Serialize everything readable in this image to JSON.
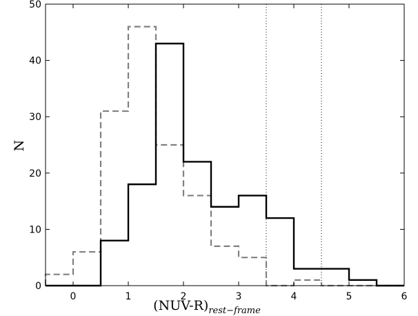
{
  "chart_data": {
    "type": "histogram",
    "bin_edges": [
      -0.5,
      0,
      0.5,
      1,
      1.5,
      2,
      2.5,
      3,
      3.5,
      4,
      4.5,
      5,
      5.5,
      6
    ],
    "series": [
      {
        "style": "solid",
        "color": "#000000",
        "values": [
          0,
          0,
          8,
          18,
          43,
          22,
          14,
          16,
          12,
          3,
          3,
          1,
          0
        ]
      },
      {
        "style": "dashed",
        "color": "#808080",
        "values": [
          2,
          6,
          31,
          46,
          25,
          16,
          7,
          5,
          0,
          1,
          0,
          0,
          0
        ]
      }
    ],
    "vlines": [
      3.5,
      4.5
    ],
    "xlim": [
      -0.5,
      6
    ],
    "ylim": [
      0,
      50
    ],
    "xticks": [
      0,
      1,
      2,
      3,
      4,
      5,
      6
    ],
    "yticks": [
      0,
      10,
      20,
      30,
      40,
      50
    ],
    "xlabel": "(NUV-R)",
    "xlabel_sub": "rest−frame",
    "ylabel": "N",
    "grid": false
  }
}
